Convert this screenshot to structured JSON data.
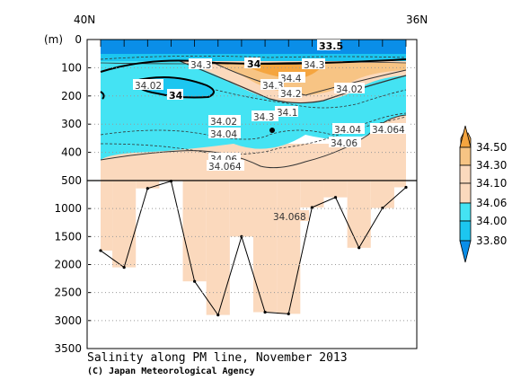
{
  "chart_data": {
    "type": "heatmap",
    "title": "Salinity along PM line, November 2013",
    "credit": "(C) Japan Meteorological Agency",
    "xlabel_left": "40N",
    "xlabel_right": "36N",
    "ylabel": "(m)",
    "y_ticks": [
      "0",
      "100",
      "200",
      "300",
      "400",
      "500",
      "1000",
      "1500",
      "2000",
      "2500",
      "3000",
      "3500"
    ],
    "ylim": [
      0,
      3500
    ],
    "y_split_depth": 500,
    "colorbar": {
      "levels": [
        "34.50",
        "34.30",
        "34.10",
        "34.06",
        "34.00",
        "33.80"
      ],
      "colors": [
        "#f5a53f",
        "#f7c484",
        "#fbd9bd",
        "#44e3f3",
        "#1cc6f0",
        "#0a8ee8"
      ]
    },
    "contour_labels": [
      "33.5",
      "34",
      "34.4",
      "34.3",
      "34.3",
      "34.3",
      "34.2",
      "34.1",
      "34.02",
      "34.02",
      "34",
      "34.3",
      "34.2",
      "34.0",
      "34.1",
      "34.02",
      "34.04",
      "34.04",
      "34.06",
      "34.04",
      "34.064",
      "34.06",
      "34.064",
      "34.068"
    ],
    "stations": [
      {
        "lat_index": 0,
        "bottom_depth": 1750
      },
      {
        "lat_index": 1,
        "bottom_depth": 2050
      },
      {
        "lat_index": 2,
        "bottom_depth": 640
      },
      {
        "lat_index": 3,
        "bottom_depth": 510
      },
      {
        "lat_index": 4,
        "bottom_depth": 2300
      },
      {
        "lat_index": 5,
        "bottom_depth": 2900
      },
      {
        "lat_index": 6,
        "bottom_depth": 1500
      },
      {
        "lat_index": 7,
        "bottom_depth": 2850
      },
      {
        "lat_index": 8,
        "bottom_depth": 2880
      },
      {
        "lat_index": 9,
        "bottom_depth": 980
      },
      {
        "lat_index": 10,
        "bottom_depth": 800
      },
      {
        "lat_index": 11,
        "bottom_depth": 1700
      },
      {
        "lat_index": 12,
        "bottom_depth": 990
      },
      {
        "lat_index": 13,
        "bottom_depth": 620
      }
    ]
  }
}
